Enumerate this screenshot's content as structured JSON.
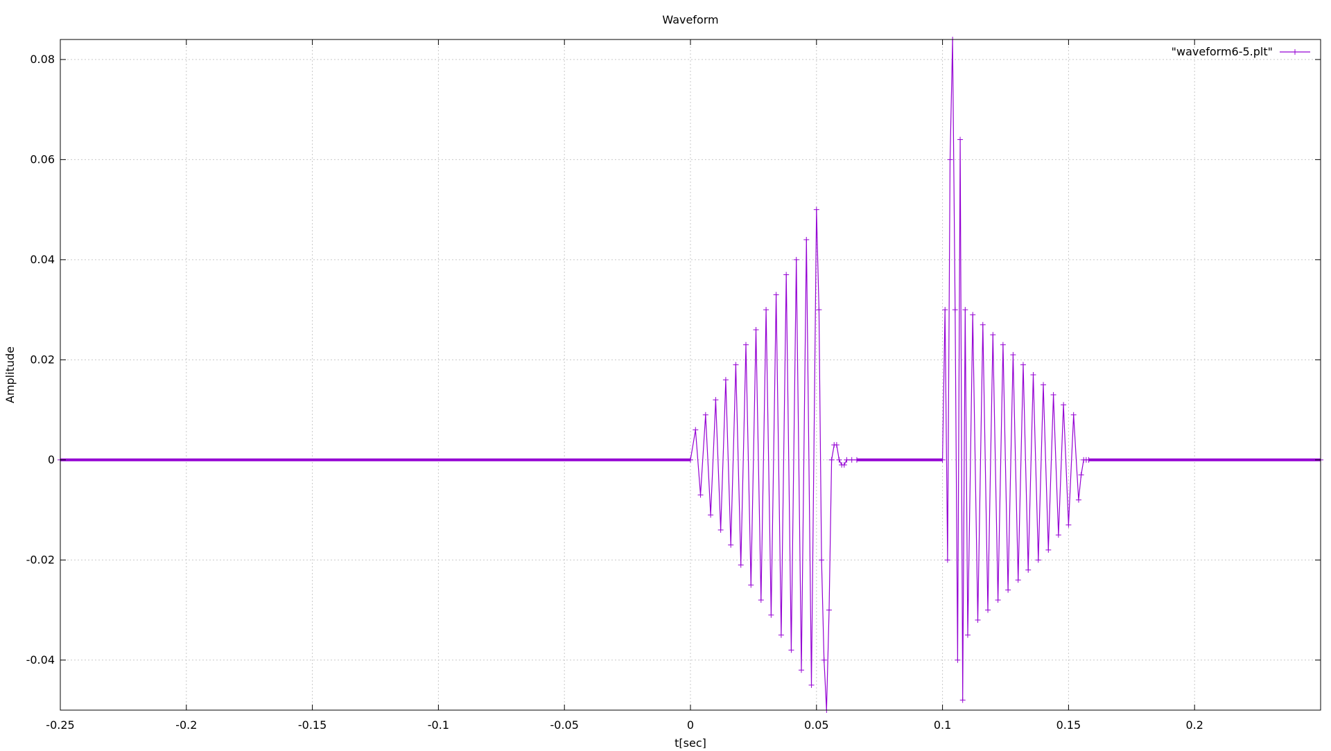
{
  "chart_data": {
    "type": "line",
    "title": "Waveform",
    "xlabel": "t[sec]",
    "ylabel": "Amplitude",
    "xlim": [
      -0.25,
      0.25
    ],
    "ylim": [
      -0.05,
      0.084
    ],
    "grid": true,
    "legend_position": "top-right",
    "x_ticks": [
      -0.25,
      -0.2,
      -0.15,
      -0.1,
      -0.05,
      0,
      0.05,
      0.1,
      0.15,
      0.2
    ],
    "x_tick_labels": [
      "-0.25",
      "-0.2",
      "-0.15",
      "-0.1",
      "-0.05",
      "0",
      "0.05",
      "0.1",
      "0.15",
      "0.2"
    ],
    "y_ticks": [
      -0.04,
      -0.02,
      0,
      0.02,
      0.04,
      0.06,
      0.08
    ],
    "y_tick_labels": [
      "-0.04",
      "-0.02",
      "0",
      "0.02",
      "0.04",
      "0.06",
      "0.08"
    ],
    "series": [
      {
        "name": "\"waveform6-5.plt\"",
        "color": "#9400d3",
        "marker": "plus",
        "x": [
          -0.25,
          0.0,
          0.002,
          0.004,
          0.006,
          0.008,
          0.01,
          0.012,
          0.014,
          0.016,
          0.018,
          0.02,
          0.022,
          0.024,
          0.026,
          0.028,
          0.03,
          0.032,
          0.034,
          0.036,
          0.038,
          0.04,
          0.042,
          0.044,
          0.046,
          0.048,
          0.05,
          0.051,
          0.052,
          0.053,
          0.054,
          0.055,
          0.056,
          0.057,
          0.058,
          0.059,
          0.06,
          0.061,
          0.062,
          0.064,
          0.066,
          0.1,
          0.101,
          0.102,
          0.103,
          0.104,
          0.105,
          0.106,
          0.107,
          0.108,
          0.109,
          0.11,
          0.112,
          0.114,
          0.116,
          0.118,
          0.12,
          0.122,
          0.124,
          0.126,
          0.128,
          0.13,
          0.132,
          0.134,
          0.136,
          0.138,
          0.14,
          0.142,
          0.144,
          0.146,
          0.148,
          0.15,
          0.152,
          0.154,
          0.155,
          0.156,
          0.157,
          0.158,
          0.25
        ],
        "y": [
          0,
          0,
          0.006,
          -0.007,
          0.009,
          -0.011,
          0.012,
          -0.014,
          0.016,
          -0.017,
          0.019,
          -0.021,
          0.023,
          -0.025,
          0.026,
          -0.028,
          0.03,
          -0.031,
          0.033,
          -0.035,
          0.037,
          -0.038,
          0.04,
          -0.042,
          0.044,
          -0.045,
          0.05,
          0.03,
          -0.02,
          -0.04,
          -0.05,
          -0.03,
          0.0,
          0.003,
          0.003,
          0.0,
          -0.001,
          -0.001,
          0.0,
          0.0,
          0.0,
          0.0,
          0.03,
          -0.02,
          0.06,
          0.084,
          0.03,
          -0.04,
          0.064,
          -0.048,
          0.03,
          -0.035,
          0.029,
          -0.032,
          0.027,
          -0.03,
          0.025,
          -0.028,
          0.023,
          -0.026,
          0.021,
          -0.024,
          0.019,
          -0.022,
          0.017,
          -0.02,
          0.015,
          -0.018,
          0.013,
          -0.015,
          0.011,
          -0.013,
          0.009,
          -0.008,
          -0.003,
          0.0,
          0.0,
          0.0,
          0.0
        ]
      }
    ]
  }
}
